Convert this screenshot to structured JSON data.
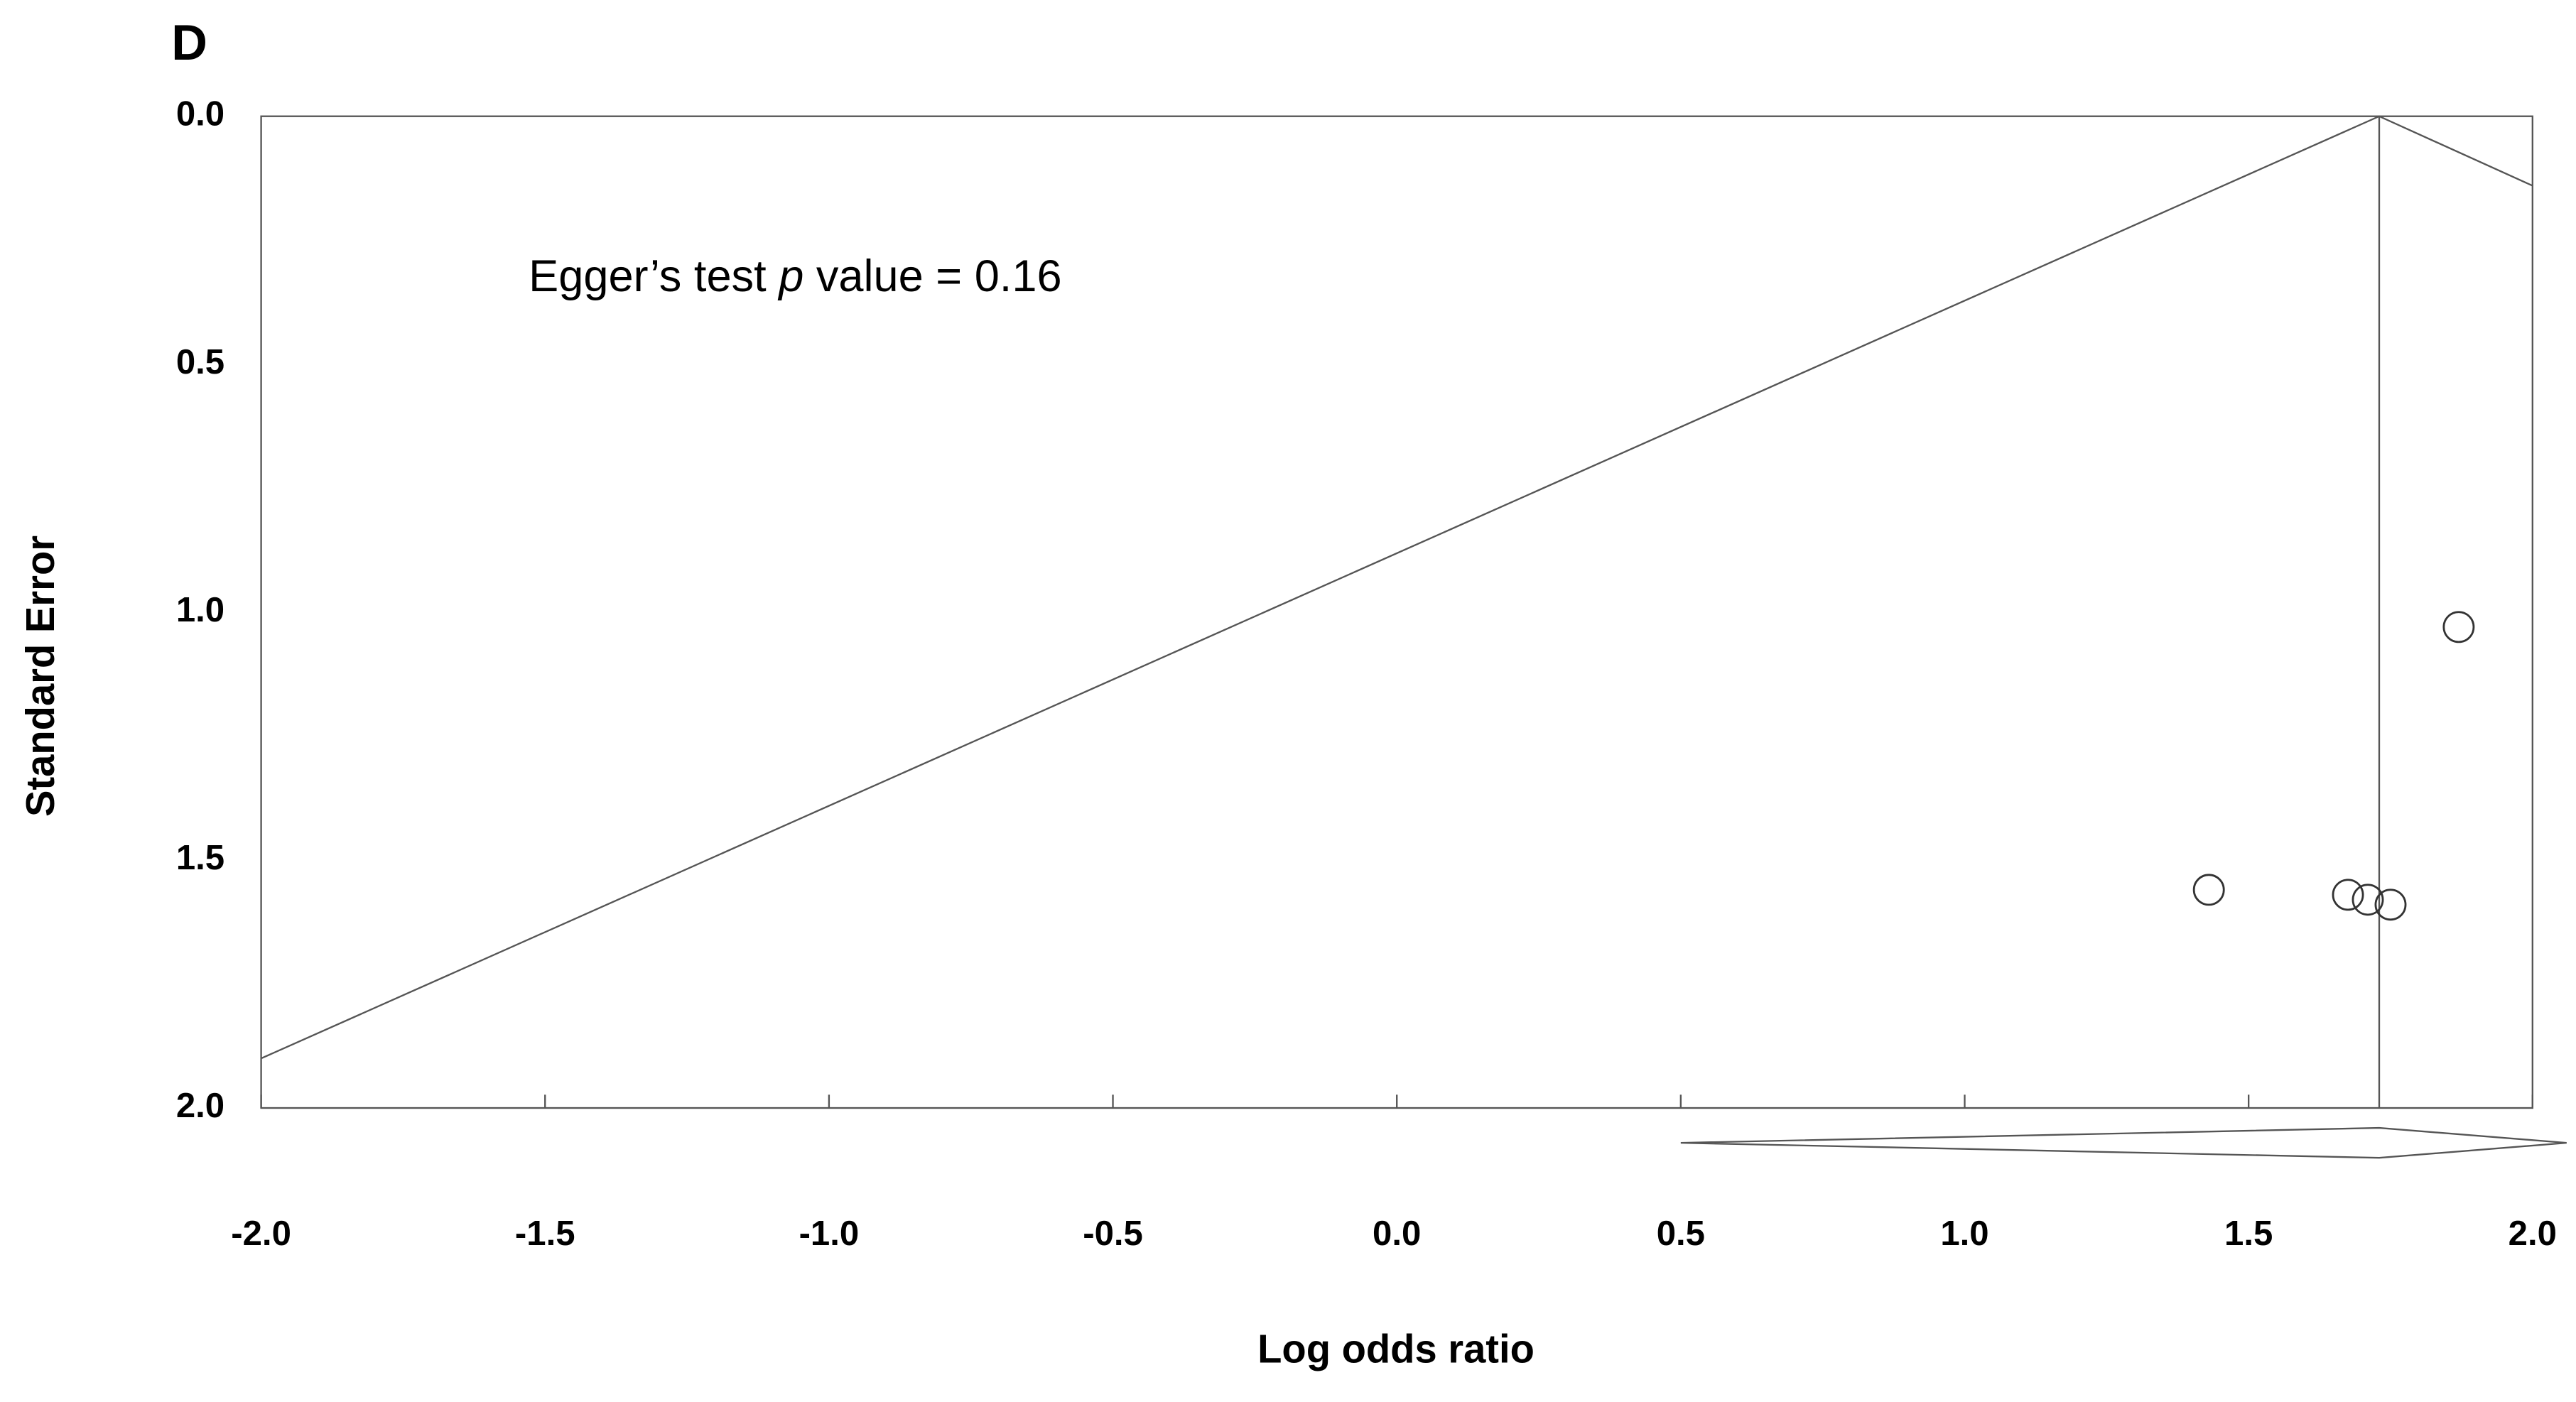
{
  "chart_data": {
    "type": "scatter",
    "panel_label": "D",
    "annotation": {
      "text": "Egger’s test ",
      "italic": "p",
      "rest": " value = 0.16"
    },
    "x_label": "Log odds ratio",
    "y_label": "Standard Error",
    "xlim": [
      -2,
      2
    ],
    "ylim": [
      0,
      2
    ],
    "y_inverted": true,
    "xticks": [
      {
        "value": -2,
        "label": "-2.0"
      },
      -1.5,
      {
        "value": -1,
        "label": "-1.0"
      },
      -0.5,
      {
        "value": 0,
        "label": "0.0"
      },
      0.5,
      {
        "value": 1,
        "label": "1.0"
      },
      1.5,
      {
        "value": 2,
        "label": "2.0"
      }
    ],
    "yticks": [
      {
        "value": 0,
        "label": "0.0"
      },
      0.5,
      {
        "value": 1,
        "label": "1.0"
      },
      1.5,
      {
        "value": 2,
        "label": "2.0"
      }
    ],
    "x": [
      1.43,
      1.675,
      1.71,
      1.75,
      1.87
    ],
    "values": [
      1.56,
      1.57,
      1.58,
      1.59,
      1.03
    ],
    "funnel": {
      "x": [
        -2,
        1.73,
        2
      ],
      "y": [
        1.9,
        0,
        0.14
      ]
    },
    "pooled_estimate": 1.73,
    "summary": {
      "estimate": 1.73,
      "lower": 0.5,
      "upper": 2.06
    },
    "color": "#333333"
  }
}
